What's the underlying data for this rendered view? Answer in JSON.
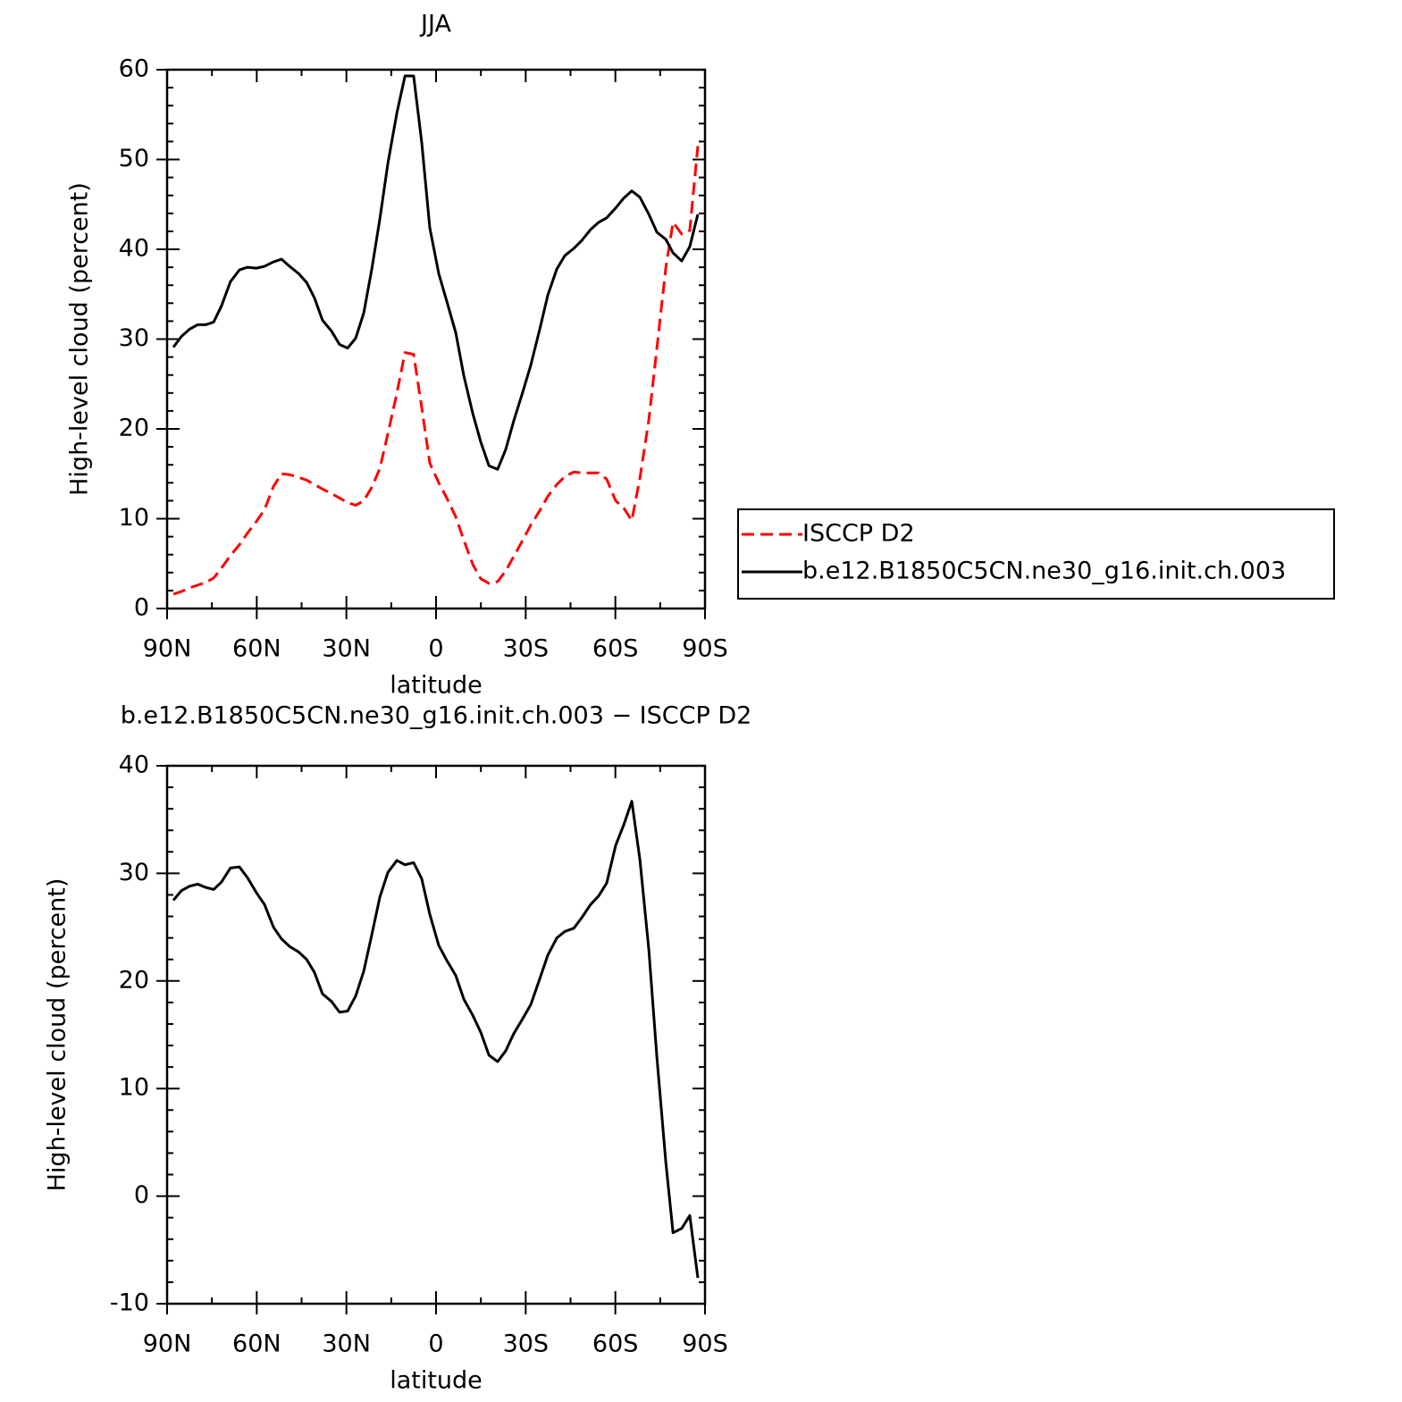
{
  "chart_data": [
    {
      "type": "line",
      "title": "JJA",
      "xlabel": "latitude",
      "ylabel": "High-level cloud (percent)",
      "x": [
        87.9,
        85.2,
        82.5,
        79.8,
        77.1,
        74.4,
        71.8,
        68.8,
        65.8,
        63.1,
        60.1,
        57.4,
        54.4,
        51.7,
        49.0,
        46.0,
        43.3,
        40.7,
        38.0,
        35.0,
        32.3,
        29.6,
        26.9,
        24.2,
        21.5,
        18.8,
        16.1,
        13.1,
        10.4,
        7.5,
        4.8,
        2.1,
        -0.9,
        -3.6,
        -6.6,
        -9.3,
        -12.3,
        -15.0,
        -17.7,
        -20.6,
        -23.3,
        -26.0,
        -29.0,
        -31.7,
        -34.7,
        -37.4,
        -40.4,
        -43.1,
        -46.1,
        -48.8,
        -51.7,
        -54.4,
        -57.1,
        -60.1,
        -62.8,
        -65.5,
        -68.2,
        -71.2,
        -73.9,
        -76.9,
        -79.3,
        -82.2,
        -84.9,
        -87.6
      ],
      "series": [
        {
          "name": "ISCCP D2",
          "color": "#ff0000",
          "dash": true,
          "values": [
            1.6,
            1.9,
            2.3,
            2.6,
            2.9,
            3.4,
            4.5,
            5.9,
            7.1,
            8.4,
            9.7,
            11.0,
            13.6,
            15.0,
            14.9,
            14.6,
            14.3,
            13.8,
            13.3,
            12.8,
            12.3,
            11.8,
            11.5,
            12.0,
            13.5,
            15.6,
            19.5,
            24.0,
            28.5,
            28.3,
            22.4,
            16.2,
            14.0,
            12.3,
            10.2,
            7.6,
            4.9,
            3.3,
            2.8,
            3.0,
            4.2,
            5.8,
            7.6,
            9.3,
            10.9,
            12.5,
            13.8,
            14.7,
            15.2,
            15.1,
            15.1,
            15.1,
            14.4,
            12.0,
            11.2,
            9.8,
            14.5,
            21,
            29,
            38,
            43,
            41.7,
            42.1,
            51.5
          ]
        },
        {
          "name": "b.e12.B1850C5CN.ne30_g16.init.ch.003",
          "color": "#000000",
          "dash": false,
          "values": [
            29.1,
            30.3,
            31.1,
            31.6,
            31.6,
            31.9,
            33.7,
            36.4,
            37.7,
            38.0,
            37.9,
            38.1,
            38.6,
            38.9,
            38.1,
            37.3,
            36.3,
            34.6,
            32.1,
            30.9,
            29.4,
            29.0,
            30.1,
            32.9,
            37.8,
            43.4,
            49.6,
            55.2,
            59.3,
            59.3,
            51.9,
            42.4,
            37.3,
            34.2,
            30.7,
            25.9,
            21.7,
            18.5,
            15.9,
            15.5,
            17.7,
            20.9,
            24.1,
            27.1,
            31.1,
            34.9,
            37.8,
            39.3,
            40.1,
            41.0,
            42.2,
            43.0,
            43.5,
            44.6,
            45.7,
            46.5,
            45.8,
            43.9,
            41.9,
            41.1,
            39.6,
            38.7,
            40.3,
            43.9
          ]
        }
      ],
      "xlim": [
        90,
        -90
      ],
      "xticks": [
        {
          "value": 90,
          "label": "90N"
        },
        {
          "value": 60,
          "label": "60N"
        },
        {
          "value": 30,
          "label": "30N"
        },
        0,
        {
          "value": -30,
          "label": "30S"
        },
        {
          "value": -60,
          "label": "60S"
        },
        {
          "value": -90,
          "label": "90S"
        }
      ],
      "ylim": [
        0,
        60
      ],
      "yticks": [
        0,
        10,
        20,
        30,
        40,
        50,
        60
      ],
      "legend": "right"
    },
    {
      "type": "line",
      "title": "b.e12.B1850C5CN.ne30_g16.init.ch.003 − ISCCP D2",
      "xlabel": "latitude",
      "ylabel": "High-level cloud (percent)",
      "x": [
        87.9,
        85.2,
        82.5,
        79.8,
        77.1,
        74.4,
        71.8,
        68.8,
        65.8,
        63.1,
        60.1,
        57.4,
        54.4,
        51.7,
        49.0,
        46.0,
        43.3,
        40.7,
        38.0,
        35.0,
        32.3,
        29.6,
        26.9,
        24.2,
        21.5,
        18.8,
        16.1,
        13.1,
        10.4,
        7.5,
        4.8,
        2.1,
        -0.9,
        -3.6,
        -6.6,
        -9.3,
        -12.3,
        -15.0,
        -17.7,
        -20.6,
        -23.3,
        -26.0,
        -29.0,
        -31.7,
        -34.7,
        -37.4,
        -40.4,
        -43.1,
        -46.1,
        -48.8,
        -51.7,
        -54.4,
        -57.1,
        -60.1,
        -62.8,
        -65.5,
        -68.2,
        -71.2,
        -73.9,
        -76.9,
        -79.3,
        -82.2,
        -84.9,
        -87.6
      ],
      "series": [
        {
          "color": "#000000",
          "dash": false,
          "values": [
            27.5,
            28.4,
            28.8,
            29.0,
            28.7,
            28.5,
            29.2,
            30.5,
            30.6,
            29.6,
            28.2,
            27.1,
            25.0,
            23.9,
            23.2,
            22.7,
            22.0,
            20.8,
            18.8,
            18.1,
            17.1,
            17.2,
            18.6,
            20.9,
            24.3,
            27.8,
            30.1,
            31.2,
            30.8,
            31.0,
            29.5,
            26.2,
            23.3,
            21.9,
            20.5,
            18.3,
            16.8,
            15.2,
            13.1,
            12.5,
            13.5,
            15.1,
            16.5,
            17.8,
            20.2,
            22.4,
            24.0,
            24.6,
            24.9,
            25.9,
            27.1,
            27.9,
            29.1,
            32.6,
            34.5,
            36.7,
            31.3,
            22.9,
            12.9,
            3.1,
            -3.4,
            -3.0,
            -1.8,
            -7.6
          ]
        }
      ],
      "xlim": [
        90,
        -90
      ],
      "xticks": [
        {
          "value": 90,
          "label": "90N"
        },
        {
          "value": 60,
          "label": "60N"
        },
        {
          "value": 30,
          "label": "30N"
        },
        0,
        {
          "value": -30,
          "label": "30S"
        },
        {
          "value": -60,
          "label": "60S"
        },
        {
          "value": -90,
          "label": "90S"
        }
      ],
      "ylim": [
        -10,
        40
      ],
      "yticks": [
        -10,
        0,
        10,
        20,
        30,
        40
      ]
    }
  ]
}
